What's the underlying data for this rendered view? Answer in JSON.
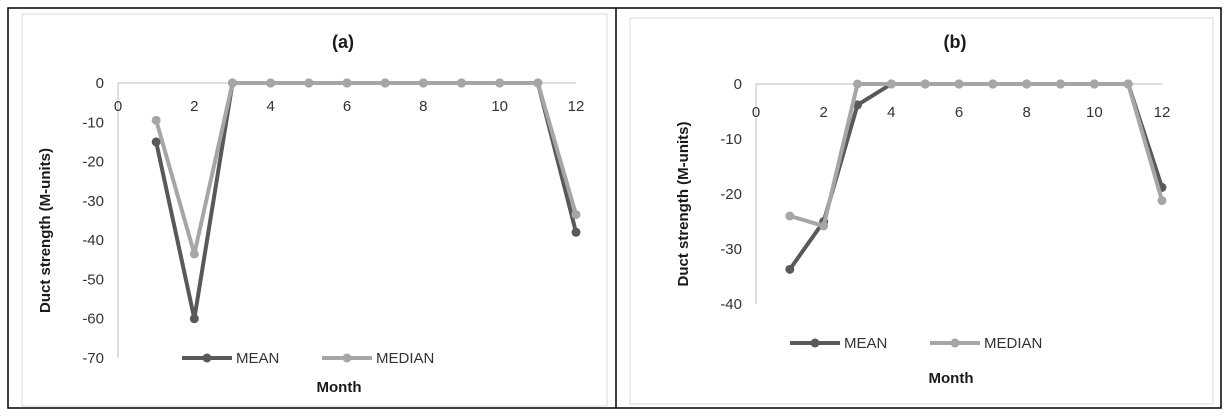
{
  "chart_data": [
    {
      "type": "line",
      "title": "(a)",
      "xlabel": "Month",
      "ylabel": "Duct strength (M-units)",
      "xlim": [
        0,
        12
      ],
      "ylim": [
        -70,
        0
      ],
      "x_ticks": [
        0,
        2,
        4,
        6,
        8,
        10,
        12
      ],
      "y_ticks": [
        0,
        -10,
        -20,
        -30,
        -40,
        -50,
        -60,
        -70
      ],
      "grid": false,
      "legend_position": "bottom",
      "series": [
        {
          "name": "MEAN",
          "color": "#595959",
          "x": [
            1,
            2,
            3,
            4,
            5,
            6,
            7,
            8,
            9,
            10,
            11,
            12
          ],
          "y": [
            -15,
            -60,
            0,
            0,
            0,
            0,
            0,
            0,
            0,
            0,
            0,
            -38
          ]
        },
        {
          "name": "MEDIAN",
          "color": "#a6a6a6",
          "x": [
            1,
            2,
            3,
            4,
            5,
            6,
            7,
            8,
            9,
            10,
            11,
            12
          ],
          "y": [
            -9.5,
            -43.5,
            0,
            0,
            0,
            0,
            0,
            0,
            0,
            0,
            0,
            -33.5
          ]
        }
      ]
    },
    {
      "type": "line",
      "title": "(b)",
      "xlabel": "Month",
      "ylabel": "Duct strength (M-units)",
      "xlim": [
        0,
        12
      ],
      "ylim": [
        -40,
        0
      ],
      "x_ticks": [
        0,
        2,
        4,
        6,
        8,
        10,
        12
      ],
      "y_ticks": [
        0,
        -10,
        -20,
        -30,
        -40
      ],
      "grid": false,
      "legend_position": "bottom",
      "series": [
        {
          "name": "MEAN",
          "color": "#595959",
          "x": [
            1,
            2,
            3,
            4,
            5,
            6,
            7,
            8,
            9,
            10,
            11,
            12
          ],
          "y": [
            -33.7,
            -25,
            -3.8,
            0,
            0,
            0,
            0,
            0,
            0,
            0,
            0,
            -18.8
          ]
        },
        {
          "name": "MEDIAN",
          "color": "#a6a6a6",
          "x": [
            1,
            2,
            3,
            4,
            5,
            6,
            7,
            8,
            9,
            10,
            11,
            12
          ],
          "y": [
            -24,
            -25.8,
            0,
            0,
            0,
            0,
            0,
            0,
            0,
            0,
            0,
            -21.2
          ]
        }
      ]
    }
  ]
}
